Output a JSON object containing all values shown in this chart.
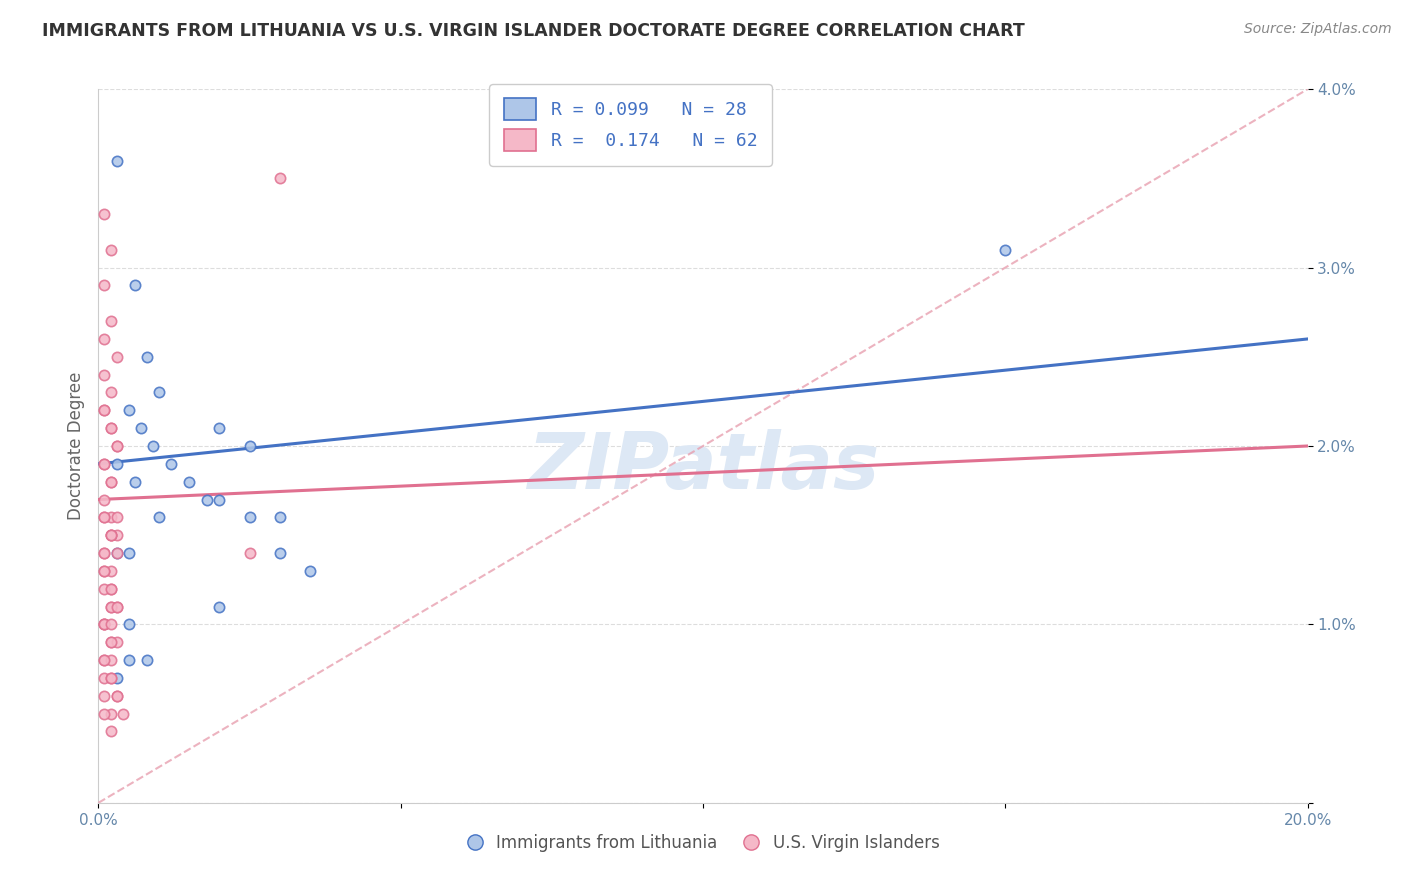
{
  "title": "IMMIGRANTS FROM LITHUANIA VS U.S. VIRGIN ISLANDER DOCTORATE DEGREE CORRELATION CHART",
  "source": "Source: ZipAtlas.com",
  "ylabel": "Doctorate Degree",
  "xlim": [
    0.0,
    0.2
  ],
  "ylim": [
    0.0,
    0.04
  ],
  "xticks": [
    0.0,
    0.05,
    0.1,
    0.15,
    0.2
  ],
  "xtick_labels": [
    "0.0%",
    "",
    "",
    "",
    "20.0%"
  ],
  "yticks": [
    0.0,
    0.01,
    0.02,
    0.03,
    0.04
  ],
  "ytick_labels_right": [
    "",
    "1.0%",
    "2.0%",
    "3.0%",
    "4.0%"
  ],
  "legend1_label": "R = 0.099   N = 28",
  "legend2_label": "R =  0.174   N = 62",
  "legend_bottom_label1": "Immigrants from Lithuania",
  "legend_bottom_label2": "U.S. Virgin Islanders",
  "blue_color": "#aec6e8",
  "pink_color": "#f5b8c8",
  "blue_line_color": "#4472c4",
  "pink_line_color": "#e07090",
  "dash_line_color": "#e8a0b0",
  "dot_size": 55,
  "blue_scatter_x": [
    0.003,
    0.006,
    0.008,
    0.01,
    0.005,
    0.007,
    0.009,
    0.012,
    0.015,
    0.018,
    0.02,
    0.025,
    0.003,
    0.006,
    0.01,
    0.02,
    0.025,
    0.03,
    0.003,
    0.005,
    0.03,
    0.035,
    0.15,
    0.02,
    0.005,
    0.008,
    0.003,
    0.005
  ],
  "blue_scatter_y": [
    0.036,
    0.029,
    0.025,
    0.023,
    0.022,
    0.021,
    0.02,
    0.019,
    0.018,
    0.017,
    0.021,
    0.02,
    0.019,
    0.018,
    0.016,
    0.017,
    0.016,
    0.016,
    0.014,
    0.014,
    0.014,
    0.013,
    0.031,
    0.011,
    0.01,
    0.008,
    0.007,
    0.008
  ],
  "pink_scatter_x": [
    0.001,
    0.002,
    0.001,
    0.002,
    0.001,
    0.003,
    0.001,
    0.002,
    0.001,
    0.002,
    0.003,
    0.001,
    0.002,
    0.001,
    0.002,
    0.003,
    0.001,
    0.002,
    0.001,
    0.002,
    0.003,
    0.001,
    0.002,
    0.001,
    0.002,
    0.001,
    0.003,
    0.002,
    0.001,
    0.002,
    0.001,
    0.003,
    0.002,
    0.001,
    0.002,
    0.001,
    0.002,
    0.003,
    0.001,
    0.002,
    0.001,
    0.002,
    0.001,
    0.003,
    0.002,
    0.001,
    0.002,
    0.001,
    0.002,
    0.003,
    0.001,
    0.002,
    0.001,
    0.002,
    0.003,
    0.004,
    0.002,
    0.001,
    0.003,
    0.025,
    0.03,
    0.002
  ],
  "pink_scatter_y": [
    0.033,
    0.031,
    0.029,
    0.027,
    0.026,
    0.025,
    0.024,
    0.023,
    0.022,
    0.021,
    0.02,
    0.019,
    0.018,
    0.022,
    0.021,
    0.02,
    0.019,
    0.018,
    0.017,
    0.016,
    0.015,
    0.016,
    0.015,
    0.014,
    0.015,
    0.014,
    0.014,
    0.013,
    0.013,
    0.012,
    0.012,
    0.011,
    0.011,
    0.01,
    0.011,
    0.01,
    0.009,
    0.009,
    0.008,
    0.008,
    0.007,
    0.007,
    0.006,
    0.006,
    0.005,
    0.005,
    0.004,
    0.013,
    0.012,
    0.011,
    0.01,
    0.009,
    0.008,
    0.007,
    0.006,
    0.005,
    0.015,
    0.016,
    0.016,
    0.014,
    0.035,
    0.01
  ],
  "blue_trend_x": [
    0.0,
    0.2
  ],
  "blue_trend_y": [
    0.019,
    0.026
  ],
  "pink_trend_x": [
    0.0,
    0.2
  ],
  "pink_trend_y": [
    0.017,
    0.02
  ],
  "watermark": "ZIPatlas",
  "background_color": "#ffffff",
  "grid_color": "#dddddd"
}
